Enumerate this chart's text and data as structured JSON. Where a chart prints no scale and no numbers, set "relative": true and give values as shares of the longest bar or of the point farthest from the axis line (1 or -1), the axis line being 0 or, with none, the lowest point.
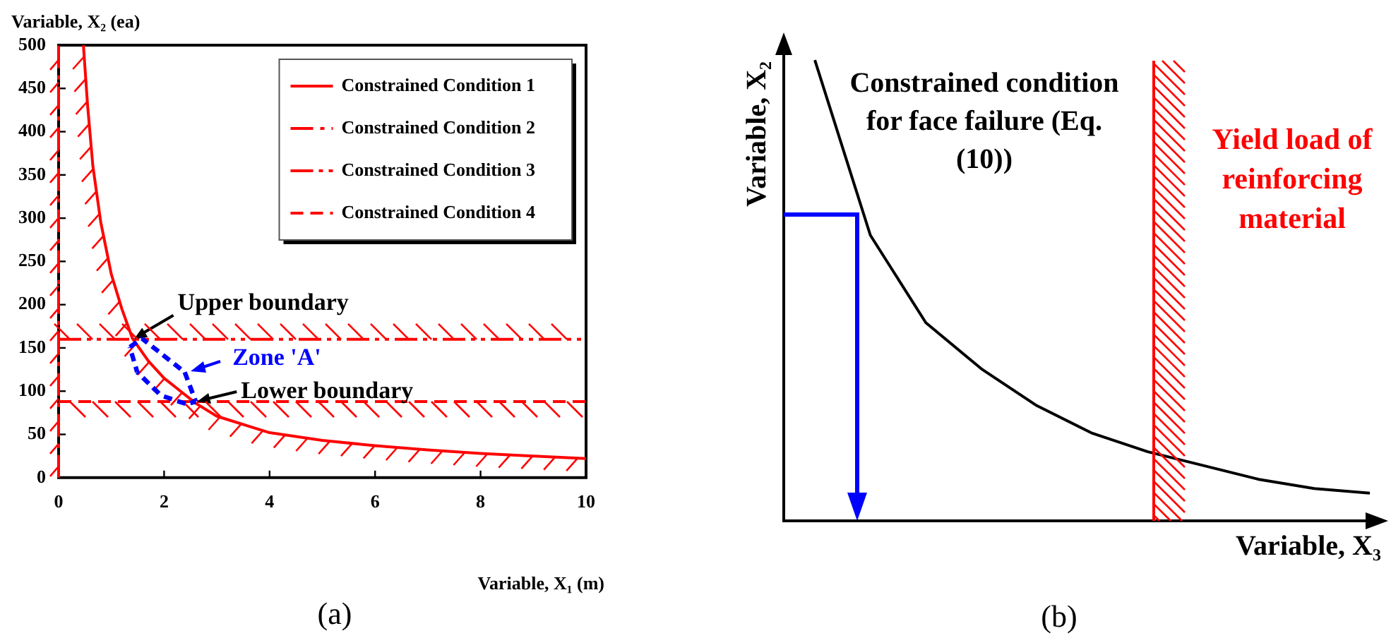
{
  "chart_data": [
    {
      "type": "line",
      "xlabel": "Variable, X₁ (m)",
      "ylabel": "Variable, X₂ (ea)",
      "xlim": [
        0,
        10
      ],
      "xticks": [
        0,
        2,
        4,
        6,
        8,
        10
      ],
      "ylim": [
        0,
        500
      ],
      "yticks": [
        0,
        50,
        100,
        150,
        200,
        250,
        300,
        350,
        400,
        450,
        500
      ],
      "grid": false,
      "legend": "top right",
      "annotations": [
        {
          "text": "Upper boundary",
          "x": 1.4,
          "y": 160
        },
        "Zone 'A'",
        {
          "text": "Lower boundary",
          "x": 2.6,
          "y": 88
        },
        "(a)"
      ],
      "series": [
        {
          "name": "Constrained Condition 1",
          "color": "#ff0000",
          "line_style": "solid",
          "x": [
            0.47,
            0.55,
            0.65,
            0.8,
            1,
            1.2,
            1.4,
            1.7,
            2,
            2.6,
            3,
            4,
            5,
            6,
            7,
            8,
            9,
            10
          ],
          "values": [
            500,
            430,
            360,
            295,
            235,
            195,
            161,
            135,
            115,
            86,
            71,
            52,
            43,
            37,
            32,
            28,
            25,
            22
          ]
        },
        {
          "name": "Constrained Condition 2",
          "color": "#ff0000",
          "line_style": "dashed",
          "x": [
            0,
            0
          ],
          "values": [
            0,
            500
          ]
        },
        {
          "name": "Constrained Condition 3",
          "color": "#ff0000",
          "line_style": "dashed",
          "x": [
            0,
            10
          ],
          "values": [
            160,
            160
          ]
        },
        {
          "name": "Constrained Condition 4",
          "color": "#ff0000",
          "line_style": "dashed",
          "x": [
            0,
            10
          ],
          "values": [
            88,
            88
          ]
        }
      ]
    },
    {
      "type": "line",
      "relative": true,
      "xlabel": "Variable, X₃",
      "ylabel": "Variable, X₂",
      "grid": false,
      "categories": [
        null,
        null,
        null,
        null,
        null,
        null,
        null,
        null,
        null,
        null,
        null
      ],
      "annotations": [
        "Constrained condition for face failure (Eq. (10))",
        "Yield load of reinforcing material",
        "(b)"
      ],
      "series": [
        {
          "color": "#000000",
          "values": [
            1.0,
            0.62,
            0.43,
            0.33,
            0.25,
            0.19,
            0.15,
            0.12,
            0.09,
            0.07,
            0.06
          ]
        }
      ]
    }
  ]
}
